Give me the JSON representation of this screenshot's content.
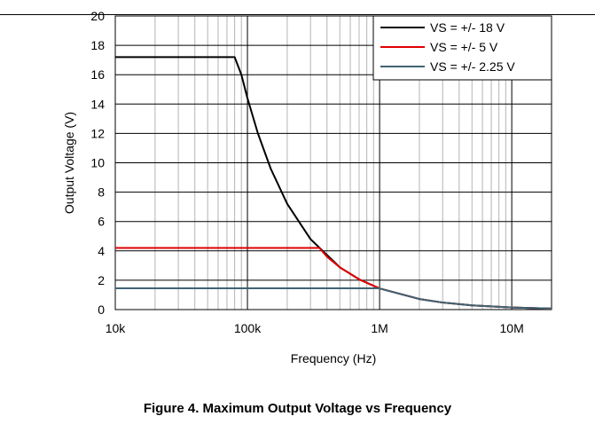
{
  "caption": "Figure 4. Maximum Output Voltage vs Frequency",
  "chart_data": {
    "type": "line",
    "title": "",
    "xlabel": "Frequency (Hz)",
    "ylabel": "Output Voltage (V)",
    "xscale": "log",
    "xlim": [
      10000,
      20000000
    ],
    "ylim": [
      0,
      20
    ],
    "x_ticks": [
      {
        "value": 10000,
        "label": "10k"
      },
      {
        "value": 100000,
        "label": "100k"
      },
      {
        "value": 1000000,
        "label": "1M"
      },
      {
        "value": 10000000,
        "label": "10M"
      }
    ],
    "y_ticks": [
      0,
      2,
      4,
      6,
      8,
      10,
      12,
      14,
      16,
      18,
      20
    ],
    "grid": true,
    "legend": "top-right",
    "series": [
      {
        "name": "VS = +/- 18 V",
        "color": "#000000",
        "x": [
          10000,
          80000,
          90000,
          100000,
          120000,
          150000,
          200000,
          300000,
          500000,
          700000,
          1000000,
          2000000,
          3000000,
          5000000,
          10000000,
          20000000
        ],
        "y": [
          17.2,
          17.2,
          16.0,
          14.4,
          12.0,
          9.6,
          7.2,
          4.8,
          2.88,
          2.06,
          1.44,
          0.72,
          0.48,
          0.29,
          0.14,
          0.07
        ]
      },
      {
        "name": "VS = +/- 5 V",
        "color": "#e00000",
        "x": [
          10000,
          350000,
          400000,
          500000,
          700000,
          1000000,
          2000000,
          3000000,
          5000000,
          10000000,
          20000000
        ],
        "y": [
          4.2,
          4.2,
          3.6,
          2.88,
          2.06,
          1.44,
          0.72,
          0.48,
          0.29,
          0.14,
          0.07
        ]
      },
      {
        "name": "VS = +/- 2.25 V",
        "color": "#3f6474",
        "x": [
          10000,
          950000,
          1000000,
          2000000,
          3000000,
          5000000,
          10000000,
          20000000
        ],
        "y": [
          1.45,
          1.45,
          1.44,
          0.72,
          0.48,
          0.29,
          0.14,
          0.07
        ]
      }
    ]
  }
}
